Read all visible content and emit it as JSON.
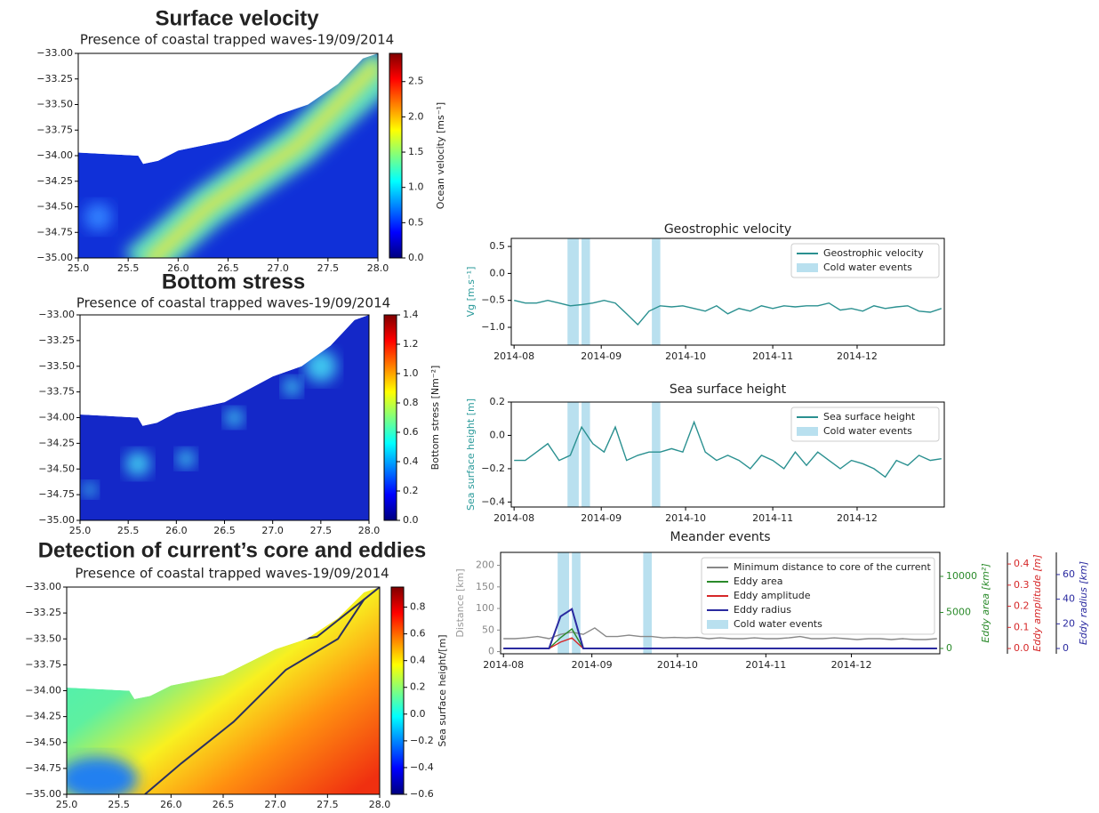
{
  "chart_data": [
    {
      "type": "heatmap",
      "title": "Surface velocity",
      "subtitle": "Presence of coastal trapped waves-19/09/2014",
      "xlim": [
        25,
        28
      ],
      "ylim": [
        -35,
        -33
      ],
      "xticks": [
        {
          "value": 25,
          "label": "25.0"
        },
        25.5,
        {
          "value": 26,
          "label": "26.0"
        },
        26.5,
        {
          "value": 27,
          "label": "27.0"
        },
        27.5,
        {
          "value": 28,
          "label": "28.0"
        }
      ],
      "yticks": [
        {
          "value": -33,
          "label": "−33.00"
        },
        {
          "value": -33.25,
          "label": "−33.25"
        },
        {
          "value": -33.5,
          "label": "−33.50"
        },
        {
          "value": -33.75,
          "label": "−33.75"
        },
        {
          "value": -34,
          "label": "−34.00"
        },
        {
          "value": -34.25,
          "label": "−34.25"
        },
        {
          "value": -34.5,
          "label": "−34.50"
        },
        {
          "value": -34.75,
          "label": "−34.75"
        },
        {
          "value": -35,
          "label": "−35.00"
        }
      ],
      "colorbar": {
        "label": "Ocean velocity [ms⁻¹]",
        "lim": [
          0,
          2.9
        ],
        "ticks": [
          {
            "value": 0,
            "label": "0.0"
          },
          0.5,
          {
            "value": 1,
            "label": "1.0"
          },
          1.5,
          {
            "value": 2,
            "label": "2.0"
          },
          2.5
        ]
      }
    },
    {
      "type": "heatmap",
      "title": "Bottom stress",
      "subtitle": "Presence of coastal trapped waves-19/09/2014",
      "xlim": [
        25,
        28
      ],
      "ylim": [
        -35,
        -33
      ],
      "xticks": [
        {
          "value": 25,
          "label": "25.0"
        },
        25.5,
        {
          "value": 26,
          "label": "26.0"
        },
        26.5,
        {
          "value": 27,
          "label": "27.0"
        },
        27.5,
        {
          "value": 28,
          "label": "28.0"
        }
      ],
      "yticks": [
        {
          "value": -33,
          "label": "−33.00"
        },
        {
          "value": -33.25,
          "label": "−33.25"
        },
        {
          "value": -33.5,
          "label": "−33.50"
        },
        {
          "value": -33.75,
          "label": "−33.75"
        },
        {
          "value": -34,
          "label": "−34.00"
        },
        {
          "value": -34.25,
          "label": "−34.25"
        },
        {
          "value": -34.5,
          "label": "−34.50"
        },
        {
          "value": -34.75,
          "label": "−34.75"
        },
        {
          "value": -35,
          "label": "−35.00"
        }
      ],
      "colorbar": {
        "label": "Bottom stress [Nm⁻²]",
        "lim": [
          0,
          1.4
        ],
        "ticks": [
          {
            "value": 0,
            "label": "0.0"
          },
          0.2,
          0.4,
          0.6,
          0.8,
          {
            "value": 1,
            "label": "1.0"
          },
          1.2,
          1.4
        ]
      }
    },
    {
      "type": "heatmap",
      "title": "Detection of current’s core and eddies",
      "subtitle": "Presence of coastal trapped waves-19/09/2014",
      "xlim": [
        25,
        28
      ],
      "ylim": [
        -35,
        -33
      ],
      "xticks": [
        {
          "value": 25,
          "label": "25.0"
        },
        25.5,
        {
          "value": 26,
          "label": "26.0"
        },
        26.5,
        {
          "value": 27,
          "label": "27.0"
        },
        27.5,
        {
          "value": 28,
          "label": "28.0"
        }
      ],
      "yticks": [
        {
          "value": -33,
          "label": "−33.00"
        },
        {
          "value": -33.25,
          "label": "−33.25"
        },
        {
          "value": -33.5,
          "label": "−33.50"
        },
        {
          "value": -33.75,
          "label": "−33.75"
        },
        {
          "value": -34,
          "label": "−34.00"
        },
        {
          "value": -34.25,
          "label": "−34.25"
        },
        {
          "value": -34.5,
          "label": "−34.50"
        },
        {
          "value": -34.75,
          "label": "−34.75"
        },
        {
          "value": -35,
          "label": "−35.00"
        }
      ],
      "colorbar": {
        "label": "Sea surface height/[m]",
        "lim": [
          -0.6,
          0.95
        ],
        "ticks": [
          {
            "value": -0.6,
            "label": "−0.6"
          },
          {
            "value": -0.4,
            "label": "−0.4"
          },
          {
            "value": -0.2,
            "label": "−0.2"
          },
          {
            "value": 0,
            "label": "0.0"
          },
          0.2,
          0.4,
          0.6,
          0.8
        ]
      }
    },
    {
      "type": "line",
      "title": "Geostrophic velocity",
      "ylabel": "Vg [m.s⁻¹]",
      "ylabel_color": "#2a9a9a",
      "xticks": [
        "2014-08",
        "2014-09",
        "2014-10",
        "2014-11",
        "2014-12"
      ],
      "ylim": [
        -1.33,
        0.65
      ],
      "yticks": [
        0.5,
        {
          "value": 0,
          "label": "0.0"
        },
        {
          "value": -0.5,
          "label": "−0.5"
        },
        {
          "value": -1,
          "label": "−1.0"
        }
      ],
      "legend": "upper right",
      "events_label": "Cold water events",
      "events_color": "#b9e0ef",
      "series": [
        {
          "name": "Geostrophic velocity",
          "color": "#2a9090",
          "values": [
            -0.5,
            -0.55,
            -0.55,
            -0.5,
            -0.55,
            -0.6,
            -0.58,
            -0.55,
            -0.5,
            -0.55,
            -0.75,
            -0.95,
            -0.7,
            -0.6,
            -0.62,
            -0.6,
            -0.65,
            -0.7,
            -0.6,
            -0.75,
            -0.65,
            -0.7,
            -0.6,
            -0.65,
            -0.6,
            -0.62,
            -0.6,
            -0.6,
            -0.55,
            -0.68,
            -0.65,
            -0.7,
            -0.6,
            -0.65,
            -0.62,
            -0.6,
            -0.7,
            -0.72,
            -0.65
          ]
        }
      ]
    },
    {
      "type": "line",
      "title": "Sea surface height",
      "ylabel": "Sea surface height [m]",
      "ylabel_color": "#2a9a9a",
      "xticks": [
        "2014-08",
        "2014-09",
        "2014-10",
        "2014-11",
        "2014-12"
      ],
      "ylim": [
        -0.43,
        0.2
      ],
      "yticks": [
        0.2,
        {
          "value": 0,
          "label": "0.0"
        },
        {
          "value": -0.2,
          "label": "−0.2"
        },
        {
          "value": -0.4,
          "label": "−0.4"
        }
      ],
      "legend": "upper right",
      "events_label": "Cold water events",
      "events_color": "#b9e0ef",
      "series": [
        {
          "name": "Sea surface height",
          "color": "#2a9090",
          "values": [
            -0.15,
            -0.15,
            -0.1,
            -0.05,
            -0.15,
            -0.12,
            0.05,
            -0.05,
            -0.1,
            0.05,
            -0.15,
            -0.12,
            -0.1,
            -0.1,
            -0.08,
            -0.1,
            0.08,
            -0.1,
            -0.15,
            -0.12,
            -0.15,
            -0.2,
            -0.12,
            -0.15,
            -0.2,
            -0.1,
            -0.18,
            -0.1,
            -0.15,
            -0.2,
            -0.15,
            -0.17,
            -0.2,
            -0.25,
            -0.15,
            -0.18,
            -0.12,
            -0.15,
            -0.14
          ]
        }
      ]
    },
    {
      "type": "line",
      "title": "Meander events",
      "ylabel": "Distance [km]",
      "ylabel_color": "#999999",
      "xticks": [
        "2014-08",
        "2014-09",
        "2014-10",
        "2014-11",
        "2014-12"
      ],
      "ylim": [
        -5,
        230
      ],
      "yticks": [
        0,
        50,
        100,
        150,
        200
      ],
      "y2lim": [
        -740,
        13330
      ],
      "y2ticks": [
        0,
        5000,
        10000
      ],
      "y2label": "Eddy area [km²]",
      "y2color": "#2a8a2a",
      "y3lim": [
        -0.025,
        0.455
      ],
      "y3ticks": [
        {
          "value": 0,
          "label": "0.0"
        },
        0.1,
        0.2,
        0.3,
        0.4
      ],
      "y3label": "Eddy amplitude [m]",
      "y3color": "#d62728",
      "y4lim": [
        -4.3,
        78
      ],
      "y4ticks": [
        0,
        20,
        40,
        60
      ],
      "y4label": "Eddy radius [km]",
      "y4color": "#2a2aa0",
      "legend": "upper right",
      "events_label": "Cold water events",
      "events_color": "#b9e0ef",
      "series": [
        {
          "name": "Minimum distance to core of the current",
          "color": "#888888",
          "values": [
            30,
            30,
            32,
            35,
            30,
            40,
            45,
            40,
            55,
            35,
            35,
            38,
            35,
            35,
            32,
            33,
            32,
            33,
            30,
            32,
            30,
            30,
            32,
            30,
            30,
            32,
            35,
            30,
            30,
            32,
            30,
            28,
            30,
            30,
            28,
            30,
            28,
            28,
            30
          ]
        },
        {
          "name": "Eddy area",
          "color": "#2a8a2a",
          "axis": "y2",
          "values": [
            0,
            0,
            0,
            0,
            0,
            1500,
            2700,
            0,
            0,
            0,
            0,
            0,
            0,
            0,
            0,
            0,
            0,
            0,
            0,
            0,
            0,
            0,
            0,
            0,
            0,
            0,
            0,
            0,
            0,
            0,
            0,
            0,
            0,
            0,
            0,
            0,
            0,
            0,
            0
          ]
        },
        {
          "name": "Eddy amplitude",
          "color": "#d62728",
          "axis": "y3",
          "values": [
            0,
            0,
            0,
            0,
            0,
            0.03,
            0.05,
            0,
            0,
            0,
            0,
            0,
            0,
            0,
            0,
            0,
            0,
            0,
            0,
            0,
            0,
            0,
            0,
            0,
            0,
            0,
            0,
            0,
            0,
            0,
            0,
            0,
            0,
            0,
            0,
            0,
            0,
            0,
            0
          ]
        },
        {
          "name": "Eddy radius",
          "color": "#2a2aa0",
          "axis": "y4",
          "values": [
            0,
            0,
            0,
            0,
            0,
            26,
            32,
            0,
            0,
            0,
            0,
            0,
            0,
            0,
            0,
            0,
            0,
            0,
            0,
            0,
            0,
            0,
            0,
            0,
            0,
            0,
            0,
            0,
            0,
            0,
            0,
            0,
            0,
            0,
            0,
            0,
            0,
            0,
            0
          ]
        }
      ]
    }
  ]
}
